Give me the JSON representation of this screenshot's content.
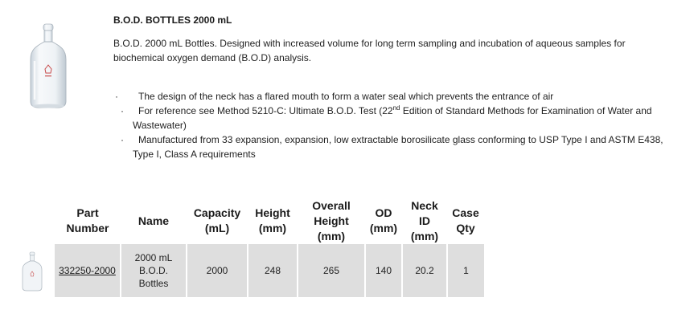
{
  "product": {
    "title": "B.O.D. BOTTLES 2000 mL",
    "description": "B.O.D. 2000 mL Bottles. Designed with increased volume for long term sampling and incubation of aqueous samples for biochemical oxygen demand (B.O.D) analysis.",
    "bullet_marker": "·",
    "bullets": [
      {
        "text": "The design of the neck has a flared mouth to form a water seal which prevents the entrance of air"
      },
      {
        "pre": "For reference see Method 5210-C: Ultimate B.O.D. Test (22",
        "sup": "nd",
        "post": " Edition of Standard Methods for Examination of Water and Wastewater)"
      },
      {
        "text": "Manufactured from 33 expansion, expansion, low extractable borosilicate glass conforming to USP Type I and ASTM E438, Type I, Class A requirements"
      }
    ]
  },
  "table": {
    "headers": {
      "part_number": [
        "Part",
        "Number"
      ],
      "name": [
        "Name"
      ],
      "capacity": [
        "Capacity",
        "(mL)"
      ],
      "height": [
        "Height",
        "(mm)"
      ],
      "overall_height": [
        "Overall",
        "Height",
        "(mm)"
      ],
      "od": [
        "OD",
        "(mm)"
      ],
      "neck_id": [
        "Neck",
        "ID (mm)"
      ],
      "case_qty": [
        "Case",
        "Qty"
      ]
    },
    "rows": [
      {
        "part_number": "332250-2000",
        "name": [
          "2000 mL",
          "B.O.D.",
          "Bottles"
        ],
        "capacity": "2000",
        "height": "248",
        "overall_height": "265",
        "od": "140",
        "neck_id": "20.2",
        "case_qty": "1"
      }
    ]
  }
}
